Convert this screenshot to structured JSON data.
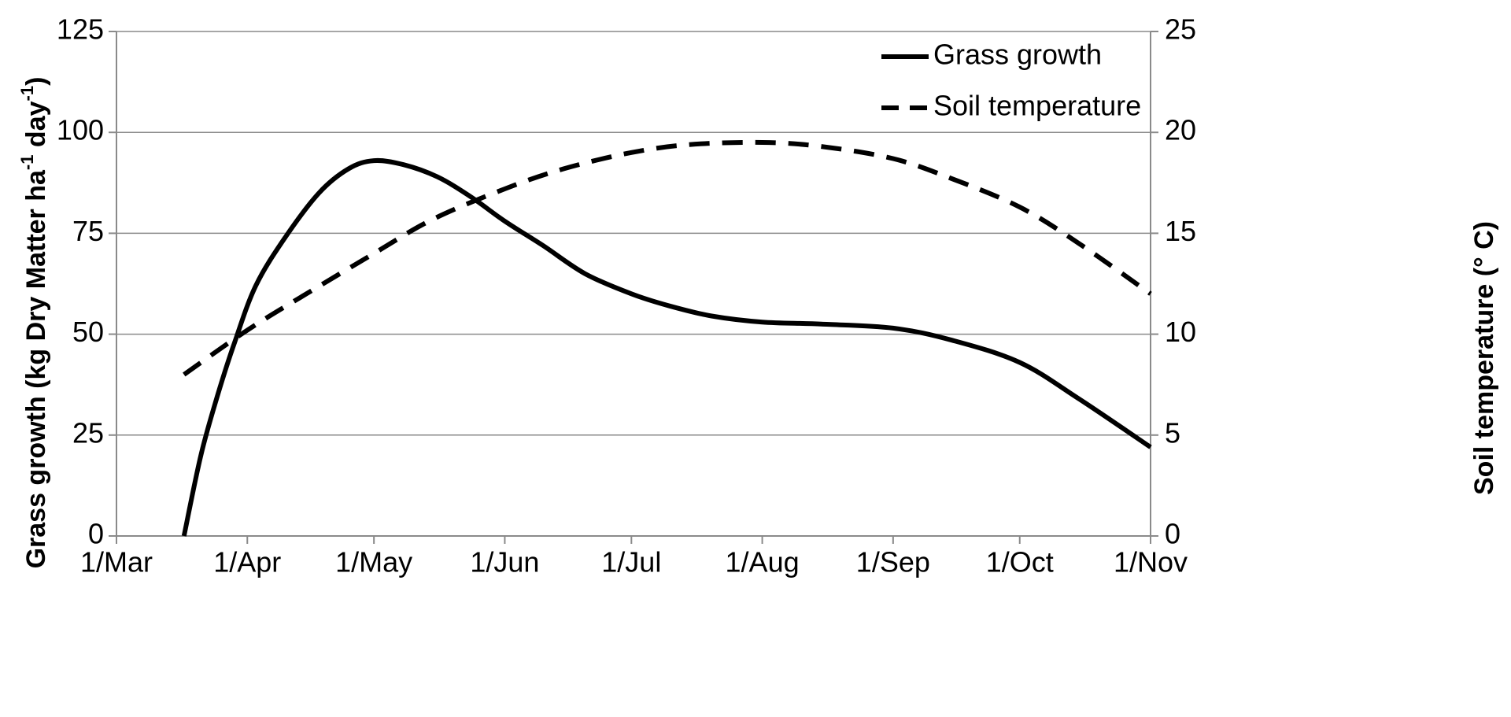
{
  "chart_data": {
    "type": "line",
    "title": "",
    "x_axis": {
      "ticks": [
        "1/Mar",
        "1/Apr",
        "1/May",
        "1/Jun",
        "1/Jul",
        "1/Aug",
        "1/Sep",
        "1/Oct",
        "1/Nov"
      ],
      "range": [
        "1/Mar",
        "1/Nov"
      ]
    },
    "y_axis_left": {
      "label_main": "Grass growth (kg Dry Matter  ha",
      "label_sup1": "-1",
      "label_mid": " day",
      "label_sup2": "-1",
      "label_end": ")",
      "ylim": [
        0,
        125
      ],
      "ticks": [
        0,
        25,
        50,
        75,
        100,
        125
      ]
    },
    "y_axis_right": {
      "label": "Soil temperature (° C)",
      "ylim": [
        0,
        25
      ],
      "ticks": [
        0,
        5,
        10,
        15,
        20,
        25
      ]
    },
    "grid": true,
    "legend_position": "top-right",
    "series": [
      {
        "name": "Grass growth",
        "axis": "left",
        "style": "solid",
        "color": "#000000",
        "points": [
          {
            "x": "3/17",
            "y": 0
          },
          {
            "x": "3/21",
            "y": 20
          },
          {
            "x": "3/25",
            "y": 35
          },
          {
            "x": "3/29",
            "y": 48
          },
          {
            "x": "4/3",
            "y": 62
          },
          {
            "x": "4/10",
            "y": 74
          },
          {
            "x": "4/18",
            "y": 85
          },
          {
            "x": "4/25",
            "y": 91
          },
          {
            "x": "5/1",
            "y": 93
          },
          {
            "x": "5/8",
            "y": 92
          },
          {
            "x": "5/16",
            "y": 89
          },
          {
            "x": "5/24",
            "y": 84
          },
          {
            "x": "6/1",
            "y": 78
          },
          {
            "x": "6/10",
            "y": 72
          },
          {
            "x": "6/20",
            "y": 65
          },
          {
            "x": "7/1",
            "y": 60
          },
          {
            "x": "7/10",
            "y": 57
          },
          {
            "x": "7/20",
            "y": 54.5
          },
          {
            "x": "8/1",
            "y": 53
          },
          {
            "x": "8/15",
            "y": 52.5
          },
          {
            "x": "9/1",
            "y": 51.5
          },
          {
            "x": "9/15",
            "y": 48.5
          },
          {
            "x": "10/1",
            "y": 43
          },
          {
            "x": "10/15",
            "y": 34
          },
          {
            "x": "11/1",
            "y": 22
          }
        ]
      },
      {
        "name": "Soil temperature",
        "axis": "right",
        "style": "dashed",
        "color": "#000000",
        "points": [
          {
            "x": "3/17",
            "y": 8
          },
          {
            "x": "4/1",
            "y": 10.2
          },
          {
            "x": "4/15",
            "y": 12
          },
          {
            "x": "5/1",
            "y": 14
          },
          {
            "x": "5/15",
            "y": 15.7
          },
          {
            "x": "6/1",
            "y": 17.2
          },
          {
            "x": "6/15",
            "y": 18.2
          },
          {
            "x": "7/1",
            "y": 19
          },
          {
            "x": "7/15",
            "y": 19.4
          },
          {
            "x": "8/1",
            "y": 19.5
          },
          {
            "x": "8/15",
            "y": 19.3
          },
          {
            "x": "9/1",
            "y": 18.7
          },
          {
            "x": "9/15",
            "y": 17.7
          },
          {
            "x": "10/1",
            "y": 16.3
          },
          {
            "x": "10/15",
            "y": 14.5
          },
          {
            "x": "11/1",
            "y": 12
          }
        ]
      }
    ]
  }
}
